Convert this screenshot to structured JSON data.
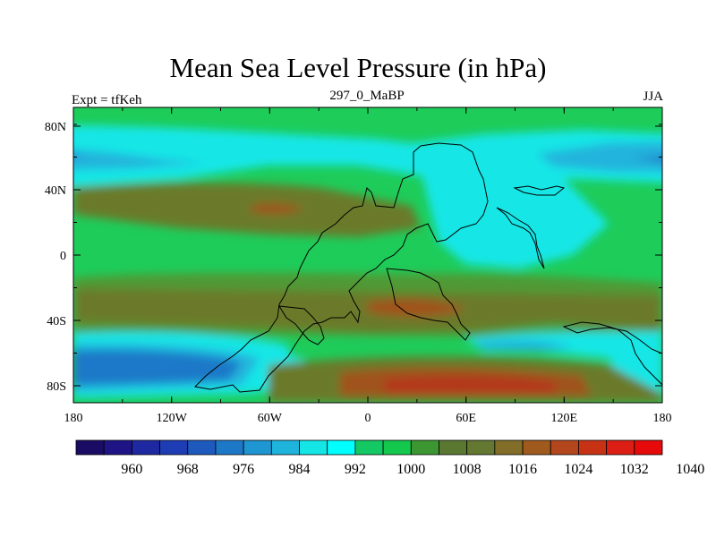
{
  "title": "Mean Sea Level Pressure (in hPa)",
  "left_label": "Expt = tfKeh",
  "center_label": "297_0_MaBP",
  "right_label": "JJA",
  "lat_ticks": [
    "80N",
    "40N",
    "0",
    "40S",
    "80S"
  ],
  "lon_ticks": [
    "180",
    "120W",
    "60W",
    "0",
    "60E",
    "120E",
    "180"
  ],
  "colorbar": {
    "labels": [
      "960",
      "968",
      "976",
      "984",
      "992",
      "1000",
      "1008",
      "1016",
      "1024",
      "1032",
      "1040"
    ],
    "colors": [
      "#1a0c64",
      "#1e1486",
      "#1e28a0",
      "#1e3cb4",
      "#1e5abe",
      "#1e78c8",
      "#1e96d2",
      "#1eb4dc",
      "#14e6e6",
      "#00ffff",
      "#14c864",
      "#14c84e",
      "#3c9632",
      "#5a7832",
      "#647832",
      "#826e28",
      "#a05a1e",
      "#b4461e",
      "#c83214",
      "#dc1e14",
      "#e60a0a"
    ]
  },
  "map_colors": {
    "green": "#1ecc5a",
    "olive": "#6a7a2a",
    "mid_green": "#4f9a36",
    "cyan": "#14e6e6",
    "light_blue": "#22b4dc",
    "blue": "#1e78c8",
    "deep_blue": "#1e5abe",
    "brown": "#a0521e",
    "red_brown": "#b4381c"
  }
}
